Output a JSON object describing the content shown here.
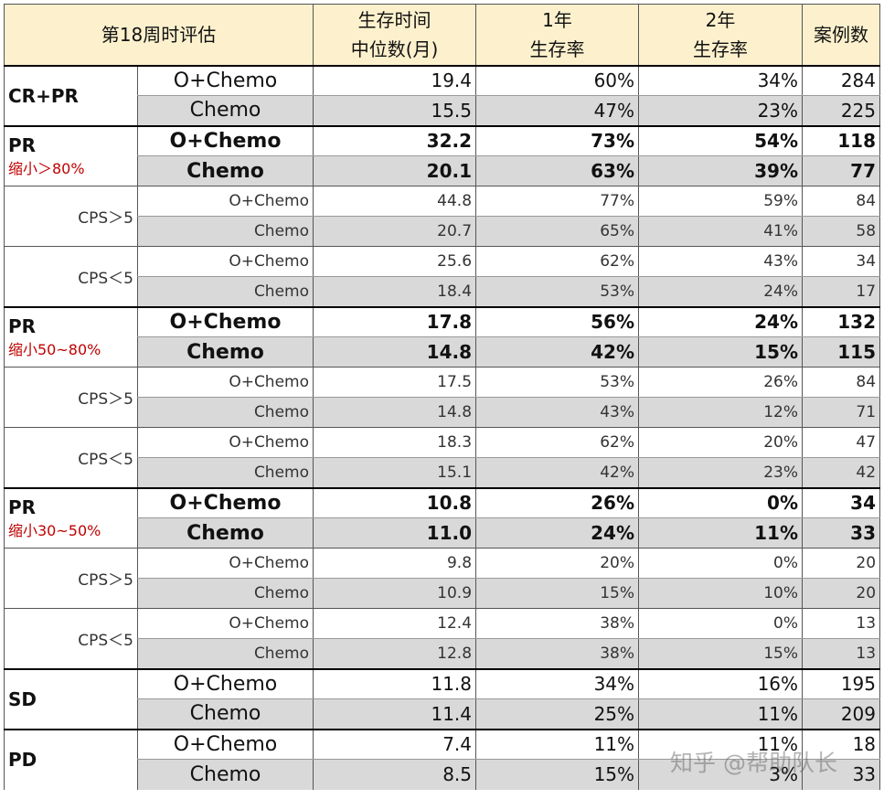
{
  "header": {
    "group": "第18周时评估",
    "median": [
      "生存时间",
      "中位数(月)"
    ],
    "y1": [
      "1年",
      "生存率"
    ],
    "y2": [
      "2年",
      "生存率"
    ],
    "n": "案例数"
  },
  "groups": [
    {
      "label": "CR+PR",
      "level": 1,
      "bold": false,
      "rows": [
        {
          "arm": "O+Chemo",
          "median": "19.4",
          "y1": "60%",
          "y2": "34%",
          "n": "284"
        },
        {
          "arm": "Chemo",
          "median": "15.5",
          "y1": "47%",
          "y2": "23%",
          "n": "225"
        }
      ]
    },
    {
      "label": "PR",
      "note": "缩小＞80%",
      "level": 1,
      "bold": true,
      "rows": [
        {
          "arm": "O+Chemo",
          "median": "32.2",
          "y1": "73%",
          "y2": "54%",
          "n": "118"
        },
        {
          "arm": "Chemo",
          "median": "20.1",
          "y1": "63%",
          "y2": "39%",
          "n": "77"
        }
      ]
    },
    {
      "label": "CPS＞5",
      "level": 2,
      "bold": false,
      "rows": [
        {
          "arm": "O+Chemo",
          "median": "44.8",
          "y1": "77%",
          "y2": "59%",
          "n": "84"
        },
        {
          "arm": "Chemo",
          "median": "20.7",
          "y1": "65%",
          "y2": "41%",
          "n": "58"
        }
      ]
    },
    {
      "label": "CPS＜5",
      "level": 2,
      "bold": false,
      "rows": [
        {
          "arm": "O+Chemo",
          "median": "25.6",
          "y1": "62%",
          "y2": "43%",
          "n": "34"
        },
        {
          "arm": "Chemo",
          "median": "18.4",
          "y1": "53%",
          "y2": "24%",
          "n": "17"
        }
      ]
    },
    {
      "label": "PR",
      "note": "缩小50~80%",
      "level": 1,
      "bold": true,
      "rows": [
        {
          "arm": "O+Chemo",
          "median": "17.8",
          "y1": "56%",
          "y2": "24%",
          "n": "132"
        },
        {
          "arm": "Chemo",
          "median": "14.8",
          "y1": "42%",
          "y2": "15%",
          "n": "115"
        }
      ]
    },
    {
      "label": "CPS＞5",
      "level": 2,
      "bold": false,
      "rows": [
        {
          "arm": "O+Chemo",
          "median": "17.5",
          "y1": "53%",
          "y2": "26%",
          "n": "84"
        },
        {
          "arm": "Chemo",
          "median": "14.8",
          "y1": "43%",
          "y2": "12%",
          "n": "71"
        }
      ]
    },
    {
      "label": "CPS＜5",
      "level": 2,
      "bold": false,
      "rows": [
        {
          "arm": "O+Chemo",
          "median": "18.3",
          "y1": "62%",
          "y2": "20%",
          "n": "47"
        },
        {
          "arm": "Chemo",
          "median": "15.1",
          "y1": "42%",
          "y2": "23%",
          "n": "42"
        }
      ]
    },
    {
      "label": "PR",
      "note": "缩小30~50%",
      "level": 1,
      "bold": true,
      "rows": [
        {
          "arm": "O+Chemo",
          "median": "10.8",
          "y1": "26%",
          "y2": "0%",
          "n": "34"
        },
        {
          "arm": "Chemo",
          "median": "11.0",
          "y1": "24%",
          "y2": "11%",
          "n": "33"
        }
      ]
    },
    {
      "label": "CPS＞5",
      "level": 2,
      "bold": false,
      "rows": [
        {
          "arm": "O+Chemo",
          "median": "9.8",
          "y1": "20%",
          "y2": "0%",
          "n": "20"
        },
        {
          "arm": "Chemo",
          "median": "10.9",
          "y1": "15%",
          "y2": "10%",
          "n": "20"
        }
      ]
    },
    {
      "label": "CPS＜5",
      "level": 2,
      "bold": false,
      "rows": [
        {
          "arm": "O+Chemo",
          "median": "12.4",
          "y1": "38%",
          "y2": "0%",
          "n": "13"
        },
        {
          "arm": "Chemo",
          "median": "12.8",
          "y1": "38%",
          "y2": "15%",
          "n": "13"
        }
      ]
    },
    {
      "label": "SD",
      "level": 1,
      "bold": false,
      "rows": [
        {
          "arm": "O+Chemo",
          "median": "11.8",
          "y1": "34%",
          "y2": "16%",
          "n": "195"
        },
        {
          "arm": "Chemo",
          "median": "11.4",
          "y1": "25%",
          "y2": "11%",
          "n": "209"
        }
      ]
    },
    {
      "label": "PD",
      "level": 1,
      "bold": false,
      "rows": [
        {
          "arm": "O+Chemo",
          "median": "7.4",
          "y1": "11%",
          "y2": "11%",
          "n": "18"
        },
        {
          "arm": "Chemo",
          "median": "8.5",
          "y1": "15%",
          "y2": "3%",
          "n": "33"
        }
      ]
    }
  ],
  "watermark": "知乎 @帮助队长"
}
